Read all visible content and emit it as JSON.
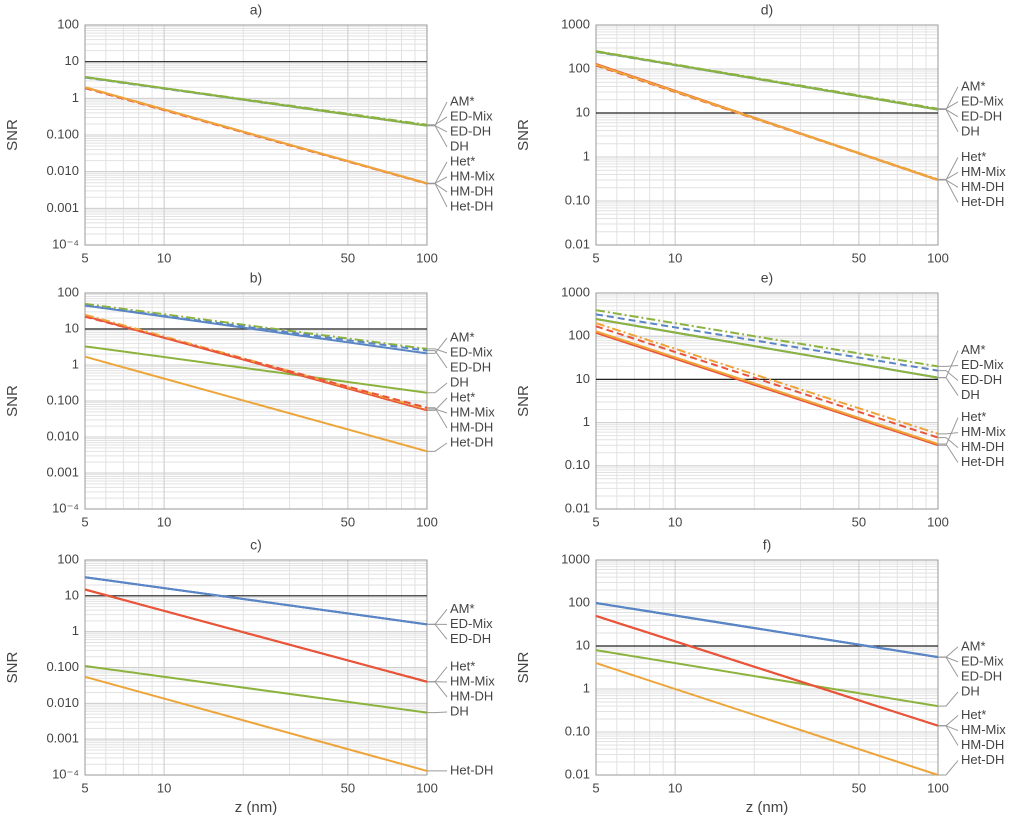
{
  "chart_data": [
    {
      "type": "line",
      "title": "a)",
      "ylabel": "SNR",
      "xlog": true,
      "ylog": true,
      "grid": true,
      "xlim": [
        5,
        100
      ],
      "xticks": [
        5,
        10,
        50,
        100
      ],
      "ylim": [
        0.0001,
        100
      ],
      "yticks": [
        {
          "value": 0.0001,
          "label": "10⁻⁴"
        },
        {
          "value": 0.001,
          "label": "0.001"
        },
        {
          "value": 0.01,
          "label": "0.010"
        },
        {
          "value": 0.1,
          "label": "0.100"
        },
        1,
        10,
        100
      ],
      "hline": 10,
      "x": [
        5,
        100
      ],
      "series": [
        {
          "name": "AM*",
          "color": "#5b86c5",
          "dash": "solid",
          "values": [
            3.8,
            0.18
          ]
        },
        {
          "name": "ED-Mix",
          "color": "#8cb33e",
          "dash": "dashdot",
          "values": [
            3.8,
            0.19
          ]
        },
        {
          "name": "ED-DH",
          "color": "#5b86c5",
          "dash": "dashed",
          "values": [
            3.7,
            0.18
          ]
        },
        {
          "name": "DH",
          "color": "#8cb33e",
          "dash": "solid",
          "values": [
            3.8,
            0.18
          ]
        },
        {
          "name": "Het*",
          "color": "#e9553a",
          "dash": "solid",
          "values": [
            2,
            0.0048
          ]
        },
        {
          "name": "HM-Mix",
          "color": "#eda53a",
          "dash": "dashdot",
          "values": [
            2,
            0.0048
          ]
        },
        {
          "name": "HM-DH",
          "color": "#e9553a",
          "dash": "dashed",
          "values": [
            1.9,
            0.0047
          ]
        },
        {
          "name": "Het-DH",
          "color": "#eda53a",
          "dash": "solid",
          "values": [
            2,
            0.0048
          ]
        }
      ]
    },
    {
      "type": "line",
      "title": "b)",
      "ylabel": "SNR",
      "xlog": true,
      "ylog": true,
      "grid": true,
      "xlim": [
        5,
        100
      ],
      "xticks": [
        5,
        10,
        50,
        100
      ],
      "ylim": [
        0.0001,
        100
      ],
      "yticks": [
        {
          "value": 0.0001,
          "label": "10⁻⁴"
        },
        {
          "value": 0.001,
          "label": "0.001"
        },
        {
          "value": 0.01,
          "label": "0.010"
        },
        {
          "value": 0.1,
          "label": "0.100"
        },
        1,
        10,
        100
      ],
      "hline": 10,
      "x": [
        5,
        100
      ],
      "series": [
        {
          "name": "AM*",
          "color": "#5b86c5",
          "dash": "solid",
          "values": [
            45,
            2.1
          ]
        },
        {
          "name": "ED-Mix",
          "color": "#8cb33e",
          "dash": "dashdot",
          "values": [
            50,
            2.8
          ]
        },
        {
          "name": "ED-DH",
          "color": "#5b86c5",
          "dash": "dashed",
          "values": [
            45,
            2.5
          ]
        },
        {
          "name": "DH",
          "color": "#8cb33e",
          "dash": "solid",
          "values": [
            3.3,
            0.17
          ]
        },
        {
          "name": "Het*",
          "color": "#e9553a",
          "dash": "solid",
          "values": [
            23,
            0.055
          ]
        },
        {
          "name": "HM-Mix",
          "color": "#eda53a",
          "dash": "dashdot",
          "values": [
            25,
            0.06
          ]
        },
        {
          "name": "HM-DH",
          "color": "#e9553a",
          "dash": "dashed",
          "values": [
            22,
            0.065
          ]
        },
        {
          "name": "Het-DH",
          "color": "#eda53a",
          "dash": "solid",
          "values": [
            1.7,
            0.004
          ]
        }
      ]
    },
    {
      "type": "line",
      "title": "c)",
      "ylabel": "SNR",
      "xlabel": "z (nm)",
      "xlog": true,
      "ylog": true,
      "grid": true,
      "xlim": [
        5,
        100
      ],
      "xticks": [
        5,
        10,
        50,
        100
      ],
      "ylim": [
        0.0001,
        100
      ],
      "yticks": [
        {
          "value": 0.0001,
          "label": "10⁻⁴"
        },
        {
          "value": 0.001,
          "label": "0.001"
        },
        {
          "value": 0.01,
          "label": "0.010"
        },
        {
          "value": 0.1,
          "label": "0.100"
        },
        1,
        10,
        100
      ],
      "hline": 10,
      "x": [
        5,
        100
      ],
      "series": [
        {
          "name": "AM*",
          "color": "#5b86c5",
          "dash": "solid",
          "values": [
            33,
            1.6
          ]
        },
        {
          "name": "ED-Mix",
          "color": "#5b86c5",
          "dash": "solid",
          "values": [
            33,
            1.6
          ]
        },
        {
          "name": "ED-DH",
          "color": "#5b86c5",
          "dash": "solid",
          "values": [
            33,
            1.6
          ]
        },
        {
          "name": "Het*",
          "color": "#e9553a",
          "dash": "solid",
          "values": [
            15,
            0.04
          ]
        },
        {
          "name": "HM-Mix",
          "color": "#e9553a",
          "dash": "solid",
          "values": [
            15,
            0.04
          ]
        },
        {
          "name": "HM-DH",
          "color": "#e9553a",
          "dash": "solid",
          "values": [
            15,
            0.04
          ]
        },
        {
          "name": "DH",
          "color": "#8cb33e",
          "dash": "solid",
          "values": [
            0.11,
            0.0055
          ]
        },
        {
          "name": "Het-DH",
          "color": "#eda53a",
          "dash": "solid",
          "values": [
            0.055,
            0.00013
          ]
        }
      ]
    },
    {
      "type": "line",
      "title": "d)",
      "ylabel": "SNR",
      "xlog": true,
      "ylog": true,
      "grid": true,
      "xlim": [
        5,
        100
      ],
      "xticks": [
        5,
        10,
        50,
        100
      ],
      "ylim": [
        0.01,
        1000
      ],
      "yticks": [
        0.01,
        {
          "value": 0.1,
          "label": "0.10"
        },
        1,
        10,
        100,
        1000
      ],
      "hline": 10,
      "x": [
        5,
        100
      ],
      "series": [
        {
          "name": "AM*",
          "color": "#5b86c5",
          "dash": "solid",
          "values": [
            250,
            12
          ]
        },
        {
          "name": "ED-Mix",
          "color": "#8cb33e",
          "dash": "dashdot",
          "values": [
            255,
            12.5
          ]
        },
        {
          "name": "ED-DH",
          "color": "#5b86c5",
          "dash": "dashed",
          "values": [
            245,
            12
          ]
        },
        {
          "name": "DH",
          "color": "#8cb33e",
          "dash": "solid",
          "values": [
            250,
            12
          ]
        },
        {
          "name": "Het*",
          "color": "#e9553a",
          "dash": "solid",
          "values": [
            130,
            0.3
          ]
        },
        {
          "name": "HM-Mix",
          "color": "#eda53a",
          "dash": "dashdot",
          "values": [
            125,
            0.31
          ]
        },
        {
          "name": "HM-DH",
          "color": "#e9553a",
          "dash": "dashed",
          "values": [
            120,
            0.3
          ]
        },
        {
          "name": "Het-DH",
          "color": "#eda53a",
          "dash": "solid",
          "values": [
            125,
            0.3
          ]
        }
      ]
    },
    {
      "type": "line",
      "title": "e)",
      "ylabel": "SNR",
      "xlog": true,
      "ylog": true,
      "grid": true,
      "xlim": [
        5,
        100
      ],
      "xticks": [
        5,
        10,
        50,
        100
      ],
      "ylim": [
        0.01,
        1000
      ],
      "yticks": [
        0.01,
        {
          "value": 0.1,
          "label": "0.10"
        },
        1,
        10,
        100,
        1000
      ],
      "hline": 10,
      "x": [
        5,
        100
      ],
      "series": [
        {
          "name": "AM*",
          "color": "#5b86c5",
          "dash": "solid",
          "values": [
            250,
            11
          ]
        },
        {
          "name": "ED-Mix",
          "color": "#8cb33e",
          "dash": "dashdot",
          "values": [
            400,
            20
          ]
        },
        {
          "name": "ED-DH",
          "color": "#5b86c5",
          "dash": "dashed",
          "values": [
            320,
            16
          ]
        },
        {
          "name": "DH",
          "color": "#8cb33e",
          "dash": "solid",
          "values": [
            250,
            11
          ]
        },
        {
          "name": "Het*",
          "color": "#e9553a",
          "dash": "solid",
          "values": [
            120,
            0.3
          ]
        },
        {
          "name": "HM-Mix",
          "color": "#eda53a",
          "dash": "dashdot",
          "values": [
            200,
            0.55
          ]
        },
        {
          "name": "HM-DH",
          "color": "#e9553a",
          "dash": "dashed",
          "values": [
            170,
            0.45
          ]
        },
        {
          "name": "Het-DH",
          "color": "#eda53a",
          "dash": "solid",
          "values": [
            130,
            0.32
          ]
        }
      ]
    },
    {
      "type": "line",
      "title": "f)",
      "ylabel": "SNR",
      "xlabel": "z (nm)",
      "xlog": true,
      "ylog": true,
      "grid": true,
      "xlim": [
        5,
        100
      ],
      "xticks": [
        5,
        10,
        50,
        100
      ],
      "ylim": [
        0.01,
        1000
      ],
      "yticks": [
        0.01,
        {
          "value": 0.1,
          "label": "0.10"
        },
        1,
        10,
        100,
        1000
      ],
      "hline": 10,
      "x": [
        5,
        100
      ],
      "series": [
        {
          "name": "AM*",
          "color": "#5b86c5",
          "dash": "solid",
          "values": [
            100,
            5.5
          ]
        },
        {
          "name": "ED-Mix",
          "color": "#5b86c5",
          "dash": "solid",
          "values": [
            100,
            5.5
          ]
        },
        {
          "name": "ED-DH",
          "color": "#5b86c5",
          "dash": "solid",
          "values": [
            100,
            5.5
          ]
        },
        {
          "name": "DH",
          "color": "#8cb33e",
          "dash": "solid",
          "values": [
            8,
            0.4
          ]
        },
        {
          "name": "Het*",
          "color": "#e9553a",
          "dash": "solid",
          "values": [
            50,
            0.14
          ]
        },
        {
          "name": "HM-Mix",
          "color": "#e9553a",
          "dash": "solid",
          "values": [
            50,
            0.14
          ]
        },
        {
          "name": "HM-DH",
          "color": "#e9553a",
          "dash": "solid",
          "values": [
            50,
            0.14
          ]
        },
        {
          "name": "Het-DH",
          "color": "#eda53a",
          "dash": "solid",
          "values": [
            4,
            0.01
          ]
        }
      ]
    }
  ]
}
